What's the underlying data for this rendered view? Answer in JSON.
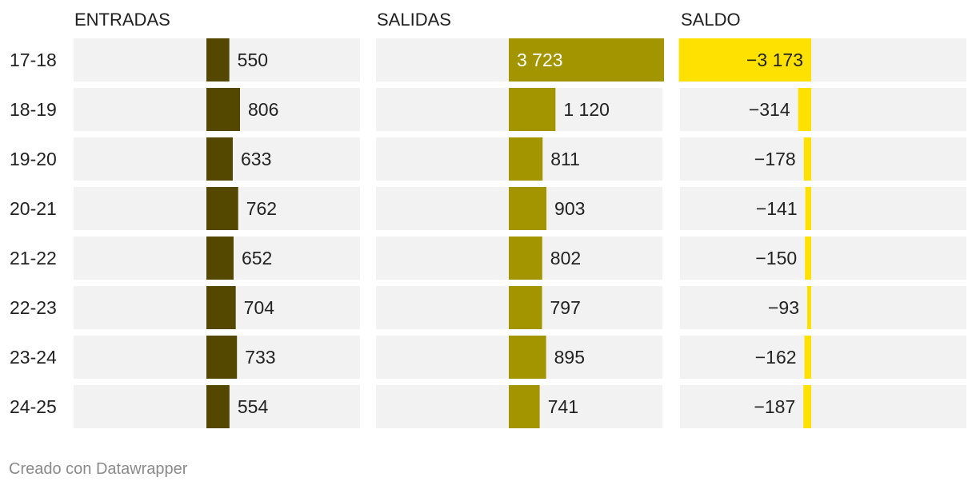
{
  "chart_data": {
    "type": "bar",
    "categories": [
      "17-18",
      "18-19",
      "19-20",
      "20-21",
      "21-22",
      "22-23",
      "23-24",
      "24-25"
    ],
    "series": [
      {
        "name": "ENTRADAS",
        "values": [
          550,
          806,
          633,
          762,
          652,
          704,
          733,
          554
        ],
        "labels": [
          "550",
          "806",
          "633",
          "762",
          "652",
          "704",
          "733",
          "554"
        ],
        "color": "#544800"
      },
      {
        "name": "SALIDAS",
        "values": [
          3723,
          1120,
          811,
          903,
          802,
          797,
          895,
          741
        ],
        "labels": [
          "3 723",
          "1 120",
          "811",
          "903",
          "802",
          "797",
          "895",
          "741"
        ],
        "color": "#a39500"
      },
      {
        "name": "SALDO",
        "values": [
          -3173,
          -314,
          -178,
          -141,
          -150,
          -93,
          -162,
          -187
        ],
        "labels": [
          "−3 173",
          "−314",
          "−178",
          "−141",
          "−150",
          "−93",
          "−162",
          "−187"
        ],
        "color": "#ffe100"
      }
    ],
    "background_color": "#f2f2f2",
    "scale_max": 3723
  },
  "footer": {
    "credit": "Creado con Datawrapper"
  }
}
